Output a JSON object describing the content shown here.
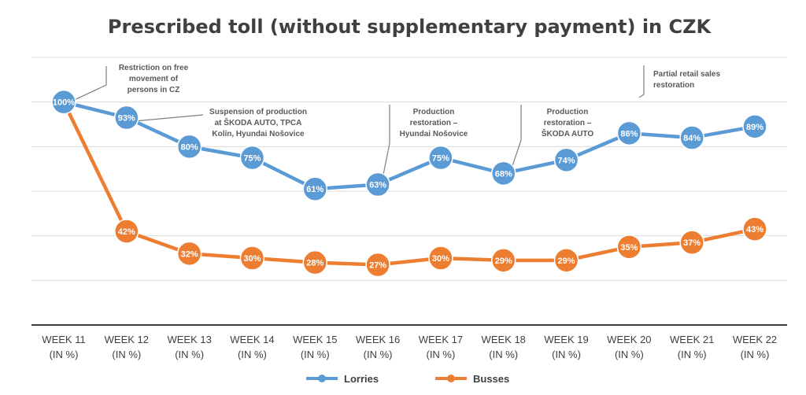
{
  "chart_data": {
    "type": "line",
    "title": "Prescribed toll (without supplementary payment) in CZK",
    "categories": [
      [
        "WEEK 11",
        "(IN %)"
      ],
      [
        "WEEK 12",
        "(IN %)"
      ],
      [
        "WEEK 13",
        "(IN %)"
      ],
      [
        "WEEK 14",
        "(IN %)"
      ],
      [
        "WEEK 15",
        "(IN %)"
      ],
      [
        "WEEK 16",
        "(IN %)"
      ],
      [
        "WEEK 17",
        "(IN %)"
      ],
      [
        "WEEK 18",
        "(IN %)"
      ],
      [
        "WEEK 19",
        "(IN %)"
      ],
      [
        "WEEK 20",
        "(IN %)"
      ],
      [
        "WEEK 21",
        "(IN %)"
      ],
      [
        "WEEK 22",
        "(IN %)"
      ]
    ],
    "ylim": [
      0,
      120
    ],
    "grid": true,
    "legend_position": "bottom",
    "series": [
      {
        "name": "Lorries",
        "color": "#5b9bd5",
        "values": [
          100,
          93,
          80,
          75,
          61,
          63,
          75,
          68,
          74,
          86,
          84,
          89
        ],
        "labels": [
          "100%",
          "93%",
          "80%",
          "75%",
          "61%",
          "63%",
          "75%",
          "68%",
          "74%",
          "86%",
          "84%",
          "89%"
        ]
      },
      {
        "name": "Busses",
        "color": "#ed7d31",
        "values": [
          100,
          42,
          32,
          30,
          28,
          27,
          30,
          29,
          29,
          35,
          37,
          43
        ],
        "labels": [
          "100%",
          "42%",
          "32%",
          "30%",
          "28%",
          "27%",
          "30%",
          "29%",
          "29%",
          "35%",
          "37%",
          "43%"
        ]
      }
    ],
    "annotations": [
      {
        "category_index": 0,
        "lines": [
          "Restriction on free",
          "movement of",
          "persons in CZ"
        ]
      },
      {
        "category_index": 1,
        "lines": [
          "Suspension of production",
          "at ŠKODA AUTO, TPCA",
          "Kolín, Hyundai Nošovice"
        ]
      },
      {
        "category_index": 5,
        "lines": [
          "Production",
          "restoration –",
          "Hyundai Nošovice"
        ]
      },
      {
        "category_index": 7,
        "lines": [
          "Production",
          "restoration –",
          "ŠKODA AUTO"
        ]
      },
      {
        "category_index": 9,
        "lines": [
          "Partial retail sales",
          "restoration"
        ]
      }
    ]
  }
}
